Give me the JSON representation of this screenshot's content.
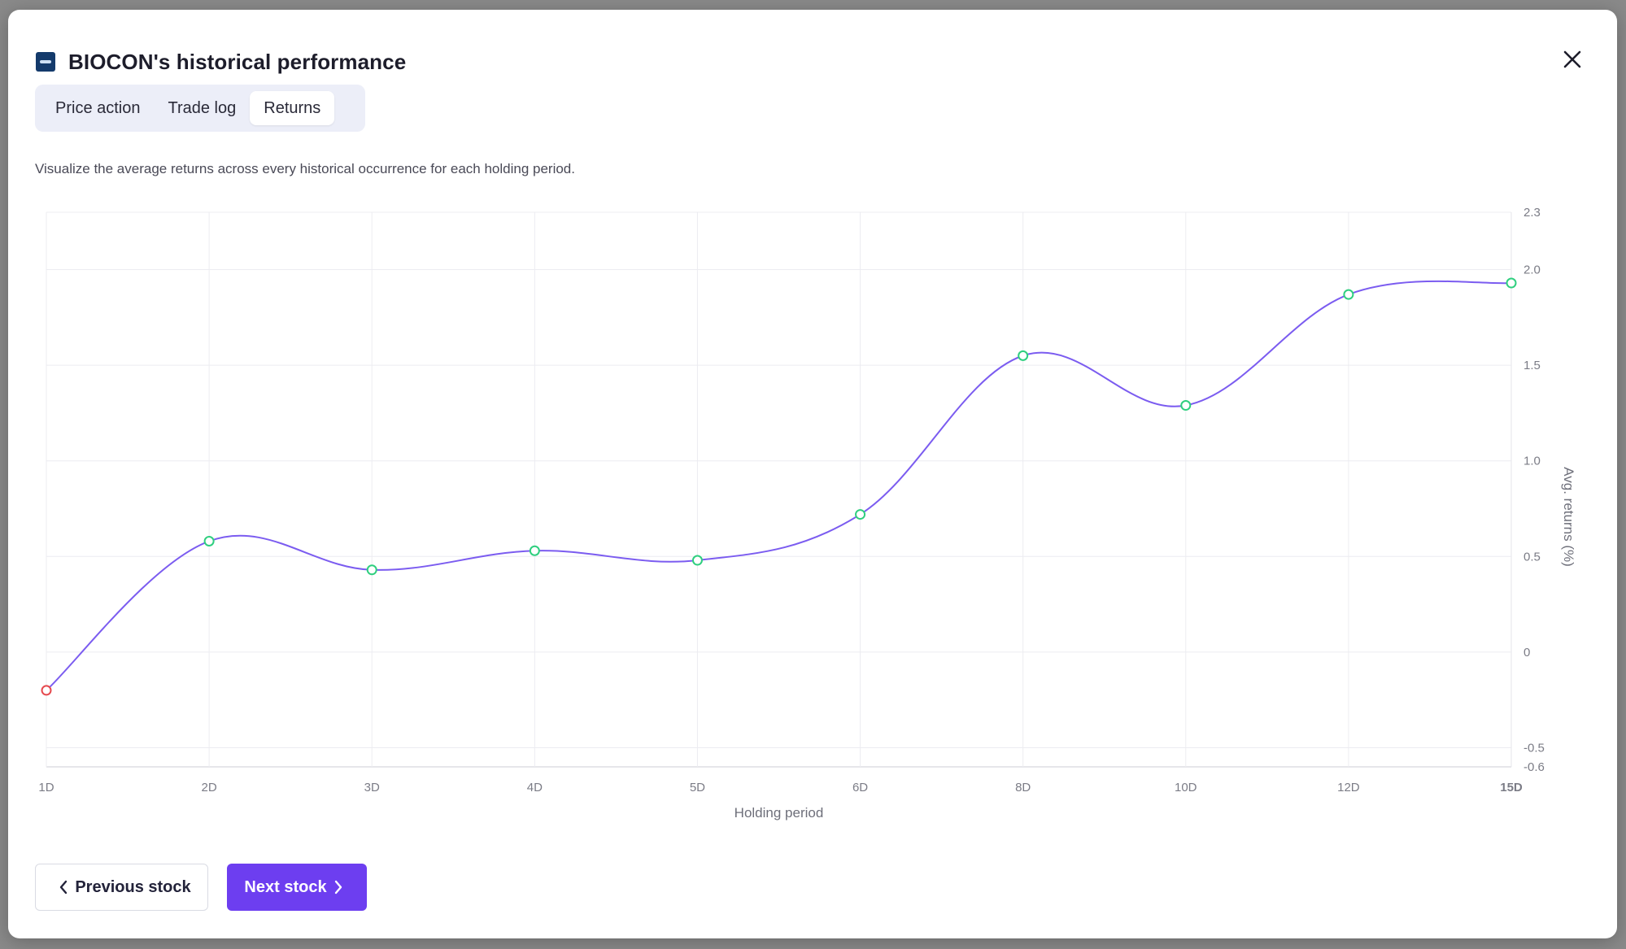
{
  "modal": {
    "title": "BIOCON's historical performance",
    "close_icon": "close-icon",
    "logo_icon": "stock-logo-icon"
  },
  "tabs": [
    {
      "label": "Price action",
      "active": false
    },
    {
      "label": "Trade log",
      "active": false
    },
    {
      "label": "Returns",
      "active": true
    }
  ],
  "description": "Visualize the average returns across every historical occurrence for each holding period.",
  "chart_data": {
    "type": "line",
    "categories": [
      "1D",
      "2D",
      "3D",
      "4D",
      "5D",
      "6D",
      "8D",
      "10D",
      "12D",
      "15D"
    ],
    "series": [
      {
        "values": [
          -0.2,
          0.58,
          0.43,
          0.53,
          0.48,
          0.72,
          1.55,
          1.29,
          1.87,
          1.93
        ]
      }
    ],
    "xlabel": "Holding period",
    "ylabel": "Avg. returns (%)",
    "ylim": [
      -0.6,
      2.3
    ],
    "yticks": [
      {
        "value": -0.6,
        "label": "-0.6"
      },
      {
        "value": -0.5,
        "label": "-0.5"
      },
      {
        "value": 0,
        "label": "0"
      },
      {
        "value": 0.5,
        "label": "0.5"
      },
      {
        "value": 1.0,
        "label": "1.0"
      },
      {
        "value": 1.5,
        "label": "1.5"
      },
      {
        "value": 2.0,
        "label": "2.0"
      },
      {
        "value": 2.3,
        "label": "2.3"
      }
    ],
    "y_axis_position": "right",
    "grid": true,
    "colors": {
      "line": "#7b5cf0",
      "positive_marker": "#2fcf7f",
      "negative_marker": "#e5484d",
      "highlight_tick": "#1a7f4b"
    },
    "highlighted_category": "15D"
  },
  "footer": {
    "prev_label": "Previous stock",
    "next_label": "Next stock"
  }
}
